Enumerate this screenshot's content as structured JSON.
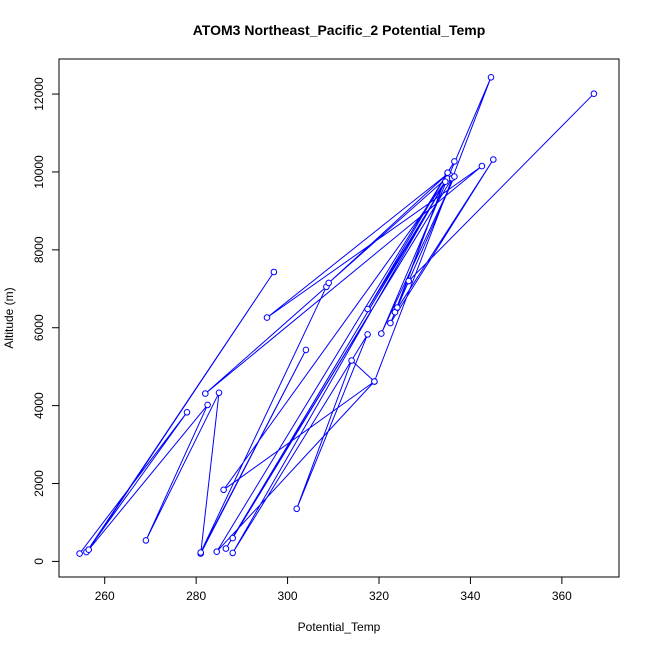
{
  "chart_data": {
    "type": "line",
    "title": "ATOM3 Northeast_Pacific_2 Potential_Temp",
    "xlabel": "Potential_Temp",
    "ylabel": "Altitude (m)",
    "xlim": [
      250.0,
      372.5
    ],
    "ylim": [
      -400,
      12900
    ],
    "xticks": [
      260,
      280,
      300,
      320,
      340,
      360
    ],
    "yticks": [
      0,
      2000,
      4000,
      6000,
      8000,
      10000,
      12000
    ],
    "grid": false,
    "legend": "none",
    "series": [
      {
        "color": "#0000ff",
        "marker": "open-circle",
        "points": [
          [
            254.5,
            200
          ],
          [
            278,
            3830
          ],
          [
            256,
            240
          ],
          [
            297,
            7430
          ],
          [
            256.5,
            300
          ],
          [
            282.5,
            4020
          ],
          [
            269,
            540
          ],
          [
            285,
            4330
          ],
          [
            281,
            200
          ],
          [
            304,
            5430
          ],
          [
            281,
            230
          ],
          [
            308.5,
            7050
          ],
          [
            282,
            4310
          ],
          [
            342.5,
            10150
          ],
          [
            295.5,
            6260
          ],
          [
            335,
            9950
          ],
          [
            309,
            7150
          ],
          [
            335.5,
            9920
          ],
          [
            317.5,
            6480
          ],
          [
            336.5,
            10270
          ],
          [
            284.5,
            250
          ],
          [
            319,
            4620
          ],
          [
            286,
            1840
          ],
          [
            335,
            9830
          ],
          [
            286.5,
            330
          ],
          [
            336,
            9840
          ],
          [
            288,
            600
          ],
          [
            334.5,
            9750
          ],
          [
            288,
            220
          ],
          [
            317.5,
            5830
          ],
          [
            302,
            1350
          ],
          [
            314,
            5160
          ],
          [
            319,
            4620
          ],
          [
            344.5,
            12430
          ],
          [
            320.5,
            5850
          ],
          [
            336.5,
            9880
          ],
          [
            322.5,
            6120
          ],
          [
            345,
            10320
          ],
          [
            323.5,
            6400
          ],
          [
            335,
            9980
          ],
          [
            324,
            6520
          ],
          [
            326.5,
            7200
          ],
          [
            326.5,
            7200
          ],
          [
            367,
            12010
          ]
        ]
      }
    ]
  }
}
